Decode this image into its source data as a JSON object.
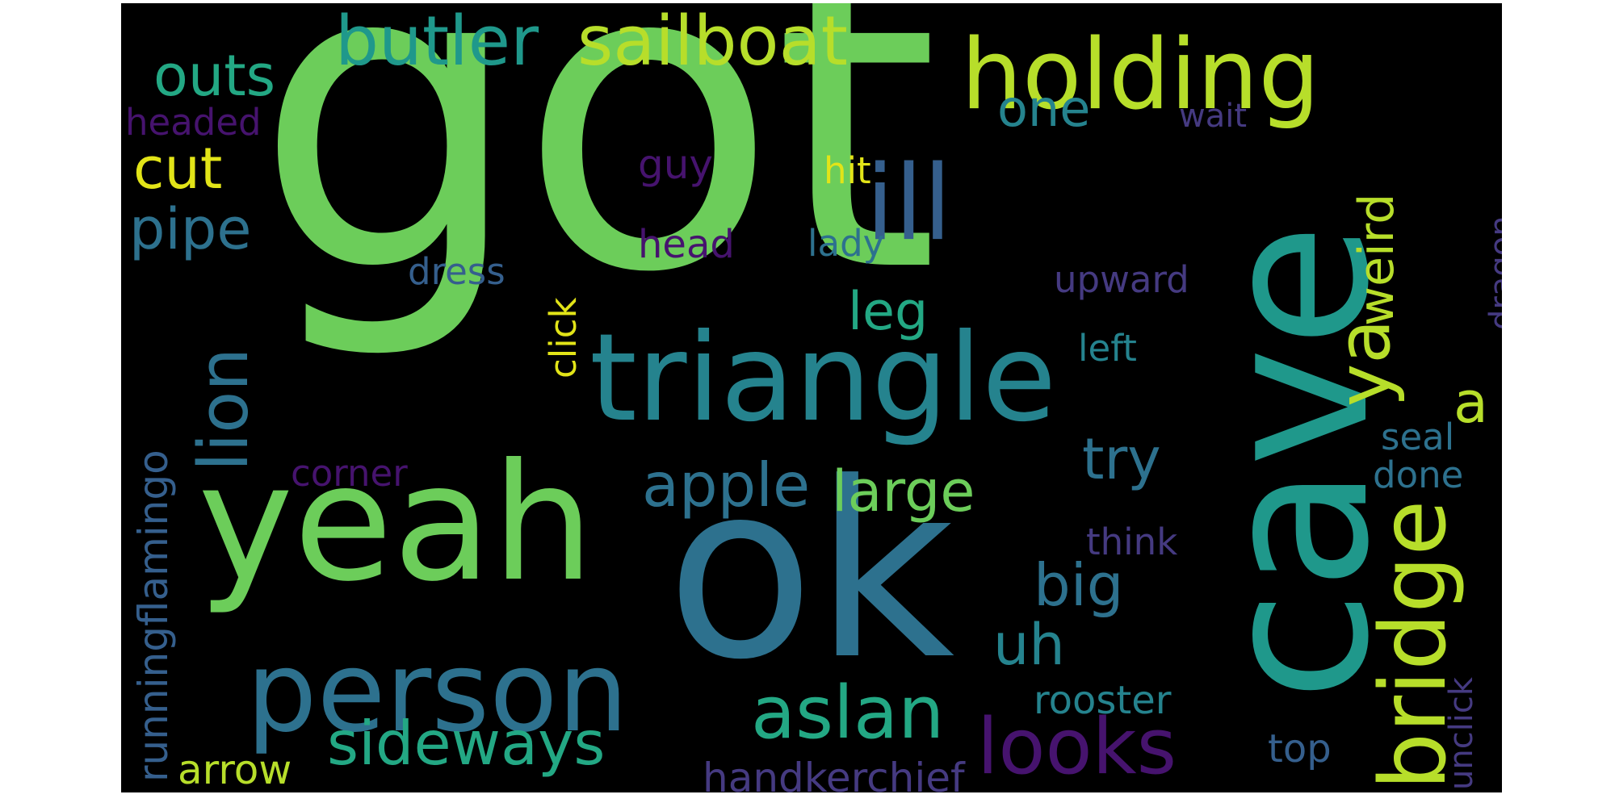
{
  "palette": {
    "purple": "#46136e",
    "indigo": "#453a81",
    "blue": "#355f8d",
    "steel": "#2d718e",
    "teal": "#25838e",
    "green_teal": "#1f988b",
    "sea": "#23a884",
    "green": "#2fb47c",
    "light_green": "#6ccd5a",
    "lime": "#b7de2a",
    "yellow": "#e2e418"
  },
  "words": [
    {
      "text": "got",
      "color": "#6ccd5a"
    },
    {
      "text": "cave",
      "color": "#1f988b"
    },
    {
      "text": "ok",
      "color": "#2d718e"
    },
    {
      "text": "yeah",
      "color": "#6ccd5a"
    },
    {
      "text": "triangle",
      "color": "#25838e"
    },
    {
      "text": "holding",
      "color": "#b7de2a"
    },
    {
      "text": "person",
      "color": "#2d718e"
    },
    {
      "text": "ill",
      "color": "#355f8d"
    },
    {
      "text": "looks",
      "color": "#46136e"
    },
    {
      "text": "bridge",
      "color": "#b7de2a"
    },
    {
      "text": "sailboat",
      "color": "#b7de2a"
    },
    {
      "text": "butler",
      "color": "#1f988b"
    },
    {
      "text": "aslan",
      "color": "#23a884"
    },
    {
      "text": "sideways",
      "color": "#23a884"
    },
    {
      "text": "lion",
      "color": "#2d718e"
    },
    {
      "text": "apple",
      "color": "#2d718e"
    },
    {
      "text": "large",
      "color": "#6ccd5a"
    },
    {
      "text": "ya",
      "color": "#b7de2a"
    },
    {
      "text": "outs",
      "color": "#23a884"
    },
    {
      "text": "pipe",
      "color": "#2d718e"
    },
    {
      "text": "cut",
      "color": "#e2e418"
    },
    {
      "text": "one",
      "color": "#25838e"
    },
    {
      "text": "leg",
      "color": "#23a884"
    },
    {
      "text": "try",
      "color": "#2d718e"
    },
    {
      "text": "big",
      "color": "#2d718e"
    },
    {
      "text": "uh",
      "color": "#25838e"
    },
    {
      "text": "weird",
      "color": "#b7de2a"
    },
    {
      "text": "a",
      "color": "#b7de2a"
    },
    {
      "text": "runningflamingo",
      "color": "#355f8d"
    },
    {
      "text": "handkerchief",
      "color": "#453a81"
    },
    {
      "text": "arrow",
      "color": "#b7de2a"
    },
    {
      "text": "rooster",
      "color": "#25838e"
    },
    {
      "text": "top",
      "color": "#355f8d"
    },
    {
      "text": "unclick",
      "color": "#453a81"
    },
    {
      "text": "dragon",
      "color": "#453a81"
    },
    {
      "text": "headed",
      "color": "#46136e"
    },
    {
      "text": "guy",
      "color": "#46136e"
    },
    {
      "text": "hit",
      "color": "#e2e418"
    },
    {
      "text": "wait",
      "color": "#453a81"
    },
    {
      "text": "head",
      "color": "#46136e"
    },
    {
      "text": "lady",
      "color": "#2d718e"
    },
    {
      "text": "dress",
      "color": "#355f8d"
    },
    {
      "text": "click",
      "color": "#e2e418"
    },
    {
      "text": "upward",
      "color": "#453a81"
    },
    {
      "text": "left",
      "color": "#25838e"
    },
    {
      "text": "corner",
      "color": "#46136e"
    },
    {
      "text": "seal",
      "color": "#2d718e"
    },
    {
      "text": "done",
      "color": "#2d718e"
    },
    {
      "text": "think",
      "color": "#453a81"
    }
  ]
}
